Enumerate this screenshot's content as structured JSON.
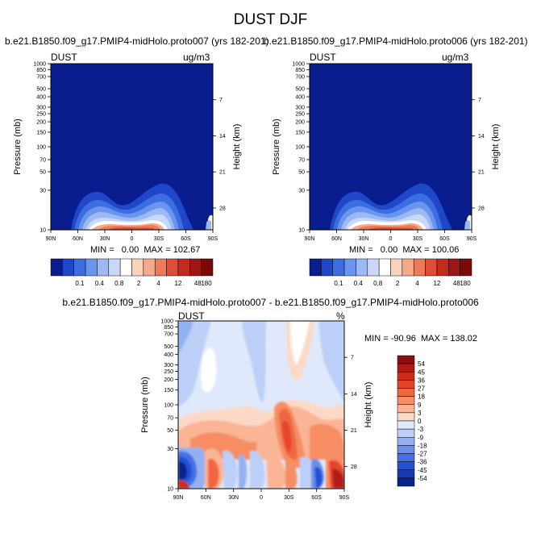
{
  "page": {
    "title": "DUST DJF"
  },
  "panels": {
    "top_left": {
      "subtitle": "b.e21.B1850.f09_g17.PMIP4-midHolo.proto007 (yrs 182-201)",
      "var_label": "DUST",
      "unit_label": "ug/m3",
      "minmax": "MIN =   0.00  MAX = 102.67"
    },
    "top_right": {
      "subtitle": "b.e21.B1850.f09_g17.PMIP4-midHolo.proto006 (yrs 182-201)",
      "var_label": "DUST",
      "unit_label": "ug/m3",
      "minmax": "MIN =   0.00  MAX = 100.06"
    },
    "bottom": {
      "subtitle": "b.e21.B1850.f09_g17.PMIP4-midHolo.proto007 - b.e21.B1850.f09_g17.PMIP4-midHolo.proto006",
      "var_label": "DUST",
      "unit_label": "%",
      "minmax": "MIN = -90.96  MAX = 138.02"
    }
  },
  "chart_data": [
    {
      "type": "heatmap",
      "panel": "top_left",
      "xlabel": "",
      "ylabel": "Pressure (mb)",
      "y2label": "Height (km)",
      "x_ticks": [
        "90N",
        "60N",
        "30N",
        "0",
        "30S",
        "60S",
        "90S"
      ],
      "y_ticks": [
        10,
        30,
        50,
        70,
        100,
        150,
        200,
        250,
        300,
        400,
        500,
        700,
        850,
        1000
      ],
      "y2_ticks": [
        28,
        21,
        14,
        7
      ],
      "y_scale": "log",
      "ylim": [
        1000,
        10
      ],
      "colorbar_labels": [
        "0.1",
        "0.4",
        "0.8",
        "2",
        "4",
        "12",
        "48",
        "180"
      ],
      "colorbar_colors": [
        "#0a1d8f",
        "#1f48c8",
        "#3c6ee0",
        "#6a95ef",
        "#9db9f5",
        "#c9d8f9",
        "#ffffff",
        "#fbd3bd",
        "#f6a988",
        "#ec7b5c",
        "#df4d37",
        "#c42a1e",
        "#9e1515",
        "#7a0a0a"
      ],
      "legend_position": "bottom",
      "min": 0.0,
      "max": 102.67
    },
    {
      "type": "heatmap",
      "panel": "top_right",
      "xlabel": "",
      "ylabel": "Pressure (mb)",
      "y2label": "Height (km)",
      "x_ticks": [
        "90N",
        "60N",
        "30N",
        "0",
        "30S",
        "60S",
        "90S"
      ],
      "y_ticks": [
        10,
        30,
        50,
        70,
        100,
        150,
        200,
        250,
        300,
        400,
        500,
        700,
        850,
        1000
      ],
      "y2_ticks": [
        28,
        21,
        14,
        7
      ],
      "y_scale": "log",
      "ylim": [
        1000,
        10
      ],
      "colorbar_labels": [
        "0.1",
        "0.4",
        "0.8",
        "2",
        "4",
        "12",
        "48",
        "180"
      ],
      "colorbar_colors": [
        "#0a1d8f",
        "#1f48c8",
        "#3c6ee0",
        "#6a95ef",
        "#9db9f5",
        "#c9d8f9",
        "#ffffff",
        "#fbd3bd",
        "#f6a988",
        "#ec7b5c",
        "#df4d37",
        "#c42a1e",
        "#9e1515",
        "#7a0a0a"
      ],
      "legend_position": "bottom",
      "min": 0.0,
      "max": 100.06
    },
    {
      "type": "heatmap",
      "panel": "bottom",
      "xlabel": "",
      "ylabel": "Pressure (mb)",
      "y2label": "Height (km)",
      "x_ticks": [
        "90N",
        "60N",
        "30N",
        "0",
        "30S",
        "60S",
        "90S"
      ],
      "y_ticks": [
        10,
        30,
        50,
        70,
        100,
        150,
        200,
        250,
        300,
        400,
        500,
        700,
        850,
        1000
      ],
      "y2_ticks": [
        28,
        21,
        14,
        7
      ],
      "y_scale": "log",
      "ylim": [
        1000,
        10
      ],
      "colorbar_labels": [
        "54",
        "45",
        "36",
        "27",
        "18",
        "9",
        "3",
        "0",
        "-3",
        "-9",
        "-18",
        "-27",
        "-36",
        "-45",
        "-54"
      ],
      "colorbar_colors": [
        "#8e0c0c",
        "#b11a14",
        "#cf2a1c",
        "#e5442a",
        "#f0663f",
        "#f68d64",
        "#f9b596",
        "#fcd9c6",
        "#dfe9fb",
        "#bccff7",
        "#93b0f1",
        "#6b8fea",
        "#4670e3",
        "#2451d8",
        "#1737b5",
        "#0c2288"
      ],
      "legend_position": "right",
      "min": -90.96,
      "max": 138.02
    }
  ]
}
